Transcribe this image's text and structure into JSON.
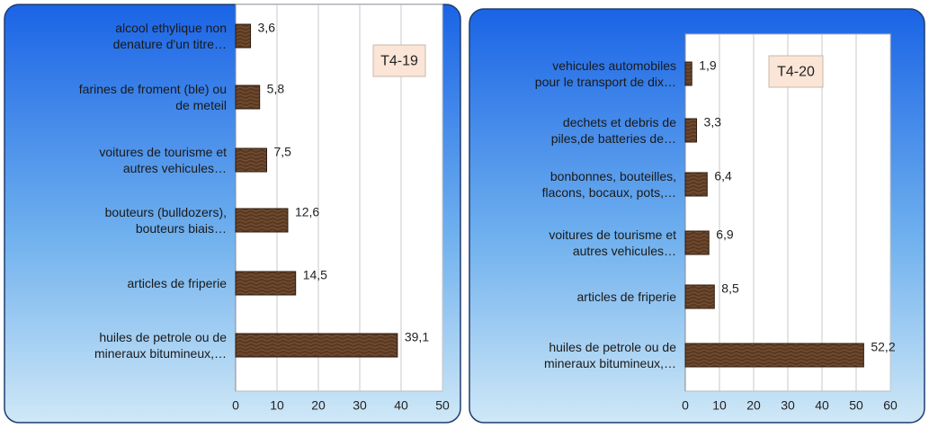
{
  "chart_data": [
    {
      "type": "bar",
      "orientation": "horizontal",
      "annotation": "T4-19",
      "categories": [
        "alcool ethylique non\ndenature d'un titre…",
        "farines de froment (ble) ou\nde meteil",
        "voitures de tourisme et\nautres vehicules…",
        "bouteurs (bulldozers),\nbouteurs biais…",
        "articles de friperie",
        "huiles de petrole ou de\nmineraux bitumineux,…"
      ],
      "values": [
        3.6,
        5.8,
        7.5,
        12.6,
        14.5,
        39.1
      ],
      "value_labels": [
        "3,6",
        "5,8",
        "7,5",
        "12,6",
        "14,5",
        "39,1"
      ],
      "color": "#5b3a22",
      "xlim": [
        0,
        50
      ],
      "xticks": [
        0,
        10,
        20,
        30,
        40,
        50
      ],
      "grid": true
    },
    {
      "type": "bar",
      "orientation": "horizontal",
      "annotation": "T4-20",
      "categories": [
        "vehicules automobiles\npour le transport de dix…",
        "dechets et debris de\npiles,de batteries de…",
        "bonbonnes, bouteilles,\nflacons, bocaux, pots,…",
        "voitures de tourisme et\nautres vehicules…",
        "articles de friperie",
        "huiles de petrole ou de\nmineraux bitumineux,…"
      ],
      "values": [
        1.9,
        3.3,
        6.4,
        6.9,
        8.5,
        52.2
      ],
      "value_labels": [
        "1,9",
        "3,3",
        "6,4",
        "6,9",
        "8,5",
        "52,2"
      ],
      "color": "#5b3a22",
      "xlim": [
        0,
        60
      ],
      "xticks": [
        0,
        10,
        20,
        30,
        40,
        50,
        60
      ],
      "grid": true
    }
  ]
}
